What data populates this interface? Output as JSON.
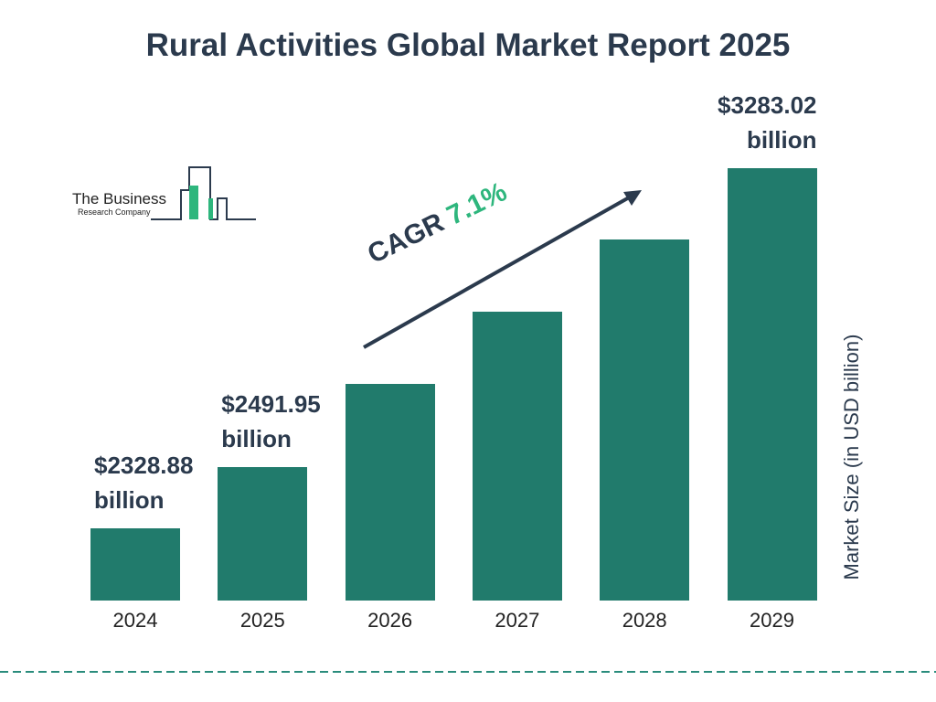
{
  "chart_data": {
    "type": "bar",
    "title": "Rural Activities Global Market Report 2025",
    "categories": [
      "2024",
      "2025",
      "2026",
      "2027",
      "2028",
      "2029"
    ],
    "values": [
      2328.88,
      2491.95,
      2711,
      2903,
      3094,
      3283.02
    ],
    "value_labels": [
      "$2328.88 billion",
      "$2491.95 billion",
      null,
      null,
      null,
      "$3283.02 billion"
    ],
    "color": "#217b6c",
    "y_axis_label": "Market Size (in USD billion)",
    "cagr": {
      "label": "CAGR",
      "value": "7.1%"
    },
    "logo": {
      "line1": "The Business",
      "line2": "Research Company"
    }
  }
}
